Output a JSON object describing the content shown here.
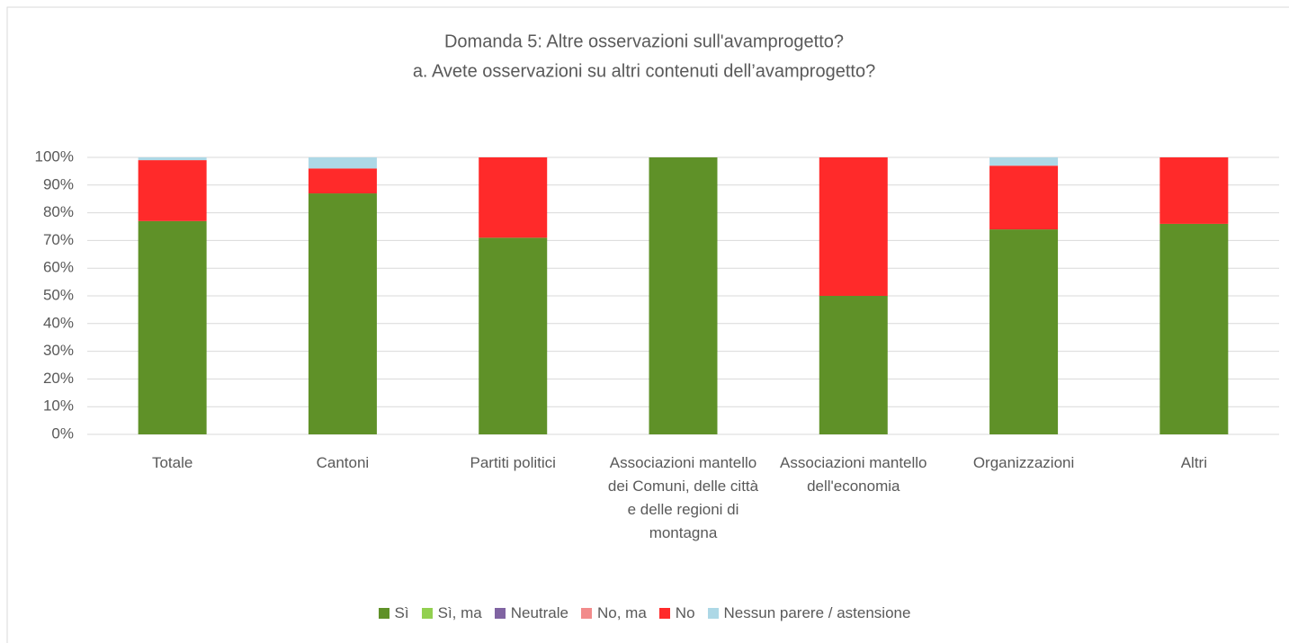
{
  "chart_data": {
    "type": "stacked_bar",
    "title": "Domanda 5: Altre osservazioni sull'avamprogetto?",
    "subtitle": "a. Avete osservazioni su altri contenuti dell’avamprogetto?",
    "categories": [
      "Totale",
      "Cantoni",
      "Partiti politici",
      "Associazioni mantello dei Comuni, delle città e delle regioni di montagna",
      "Associazioni mantello dell'economia",
      "Organizzazioni",
      "Altri"
    ],
    "series": [
      {
        "name": "Sì",
        "color": "#5f9128",
        "values": [
          77,
          87,
          71,
          100,
          50,
          74,
          76
        ]
      },
      {
        "name": "Sì, ma",
        "color": "#92d050",
        "values": [
          0,
          0,
          0,
          0,
          0,
          0,
          0
        ]
      },
      {
        "name": "Neutrale",
        "color": "#8064a2",
        "values": [
          0,
          0,
          0,
          0,
          0,
          0,
          0
        ]
      },
      {
        "name": "No, ma",
        "color": "#f28b8b",
        "values": [
          0,
          0,
          0,
          0,
          0,
          0,
          0
        ]
      },
      {
        "name": "No",
        "color": "#ff2a2a",
        "values": [
          22,
          9,
          29,
          0,
          50,
          23,
          24
        ]
      },
      {
        "name": "Nessun parere / astensione",
        "color": "#add8e6",
        "values": [
          1,
          4,
          0,
          0,
          0,
          3,
          0
        ]
      }
    ],
    "ylim": [
      0,
      100
    ],
    "yticks": [
      {
        "value": 0,
        "label": "0%"
      },
      {
        "value": 10,
        "label": "10%"
      },
      {
        "value": 20,
        "label": "20%"
      },
      {
        "value": 30,
        "label": "30%"
      },
      {
        "value": 40,
        "label": "40%"
      },
      {
        "value": 50,
        "label": "50%"
      },
      {
        "value": 60,
        "label": "60%"
      },
      {
        "value": 70,
        "label": "70%"
      },
      {
        "value": 80,
        "label": "80%"
      },
      {
        "value": 90,
        "label": "90%"
      },
      {
        "value": 100,
        "label": "100%"
      }
    ],
    "grid": true,
    "legend": "bottom"
  }
}
